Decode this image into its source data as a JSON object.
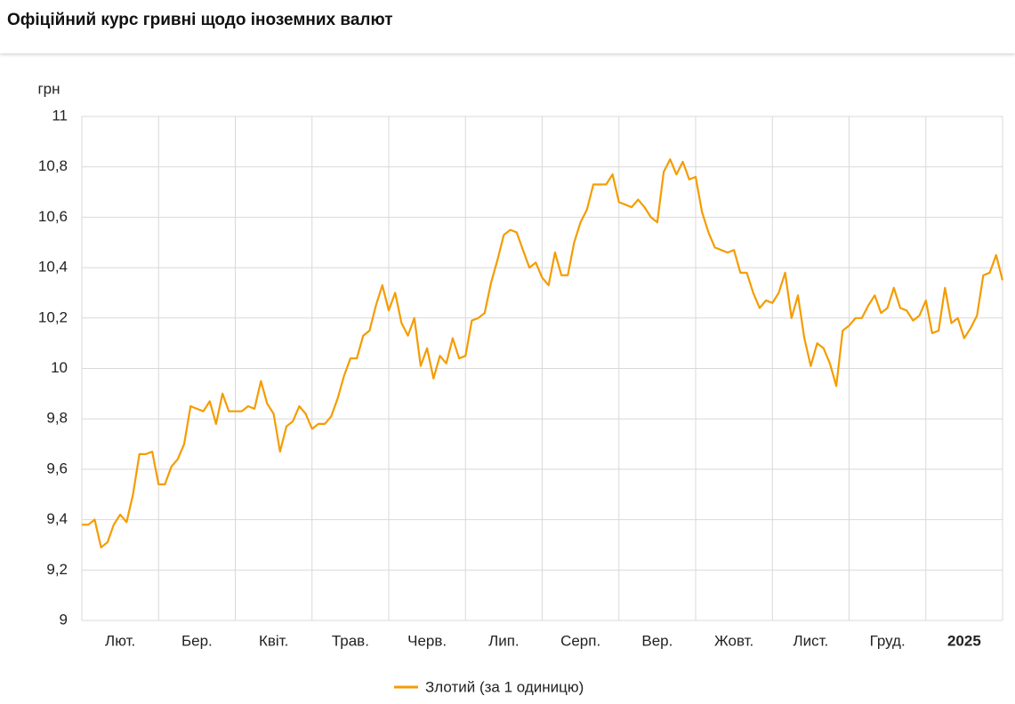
{
  "header": {
    "title": "Офіційний курс гривні щодо іноземних валют"
  },
  "chart_data": {
    "type": "line",
    "y_unit": "грн",
    "categories": [
      null,
      null,
      null,
      null,
      null,
      null,
      "Лют.",
      null,
      null,
      null,
      null,
      null,
      null,
      null,
      null,
      null,
      null,
      null,
      "Бер.",
      null,
      null,
      null,
      null,
      null,
      null,
      null,
      null,
      null,
      null,
      null,
      "Квіт.",
      null,
      null,
      null,
      null,
      null,
      null,
      null,
      null,
      null,
      null,
      null,
      "Трав.",
      null,
      null,
      null,
      null,
      null,
      null,
      null,
      null,
      null,
      null,
      null,
      "Черв.",
      null,
      null,
      null,
      null,
      null,
      null,
      null,
      null,
      null,
      null,
      null,
      "Лип.",
      null,
      null,
      null,
      null,
      null,
      null,
      null,
      null,
      null,
      null,
      null,
      "Серп.",
      null,
      null,
      null,
      null,
      null,
      null,
      null,
      null,
      null,
      null,
      null,
      "Вер.",
      null,
      null,
      null,
      null,
      null,
      null,
      null,
      null,
      null,
      null,
      null,
      "Жовт.",
      null,
      null,
      null,
      null,
      null,
      null,
      null,
      null,
      null,
      null,
      null,
      "Лист.",
      null,
      null,
      null,
      null,
      null,
      null,
      null,
      null,
      null,
      null,
      null,
      "Груд.",
      null,
      null,
      null,
      null,
      null,
      null,
      null,
      null,
      null,
      null,
      null,
      "2025",
      null,
      null,
      null,
      null,
      null,
      null
    ],
    "series": [
      {
        "name": "Злотий (за 1 одиницю)",
        "color": "#f59c00",
        "values": [
          9.38,
          9.38,
          9.4,
          9.29,
          9.31,
          9.38,
          9.42,
          9.39,
          9.5,
          9.66,
          9.66,
          9.67,
          9.54,
          9.54,
          9.61,
          9.64,
          9.7,
          9.85,
          9.84,
          9.83,
          9.87,
          9.78,
          9.9,
          9.83,
          9.83,
          9.83,
          9.85,
          9.84,
          9.95,
          9.86,
          9.82,
          9.67,
          9.77,
          9.79,
          9.85,
          9.82,
          9.76,
          9.78,
          9.78,
          9.81,
          9.88,
          9.97,
          10.04,
          10.04,
          10.13,
          10.15,
          10.25,
          10.33,
          10.23,
          10.3,
          10.18,
          10.13,
          10.2,
          10.01,
          10.08,
          9.96,
          10.05,
          10.02,
          10.12,
          10.04,
          10.05,
          10.19,
          10.2,
          10.22,
          10.34,
          10.43,
          10.53,
          10.55,
          10.54,
          10.47,
          10.4,
          10.42,
          10.36,
          10.33,
          10.46,
          10.37,
          10.37,
          10.5,
          10.58,
          10.63,
          10.73,
          10.73,
          10.73,
          10.77,
          10.66,
          10.65,
          10.64,
          10.67,
          10.64,
          10.6,
          10.58,
          10.78,
          10.83,
          10.77,
          10.82,
          10.75,
          10.76,
          10.62,
          10.54,
          10.48,
          10.47,
          10.46,
          10.47,
          10.38,
          10.38,
          10.3,
          10.24,
          10.27,
          10.26,
          10.3,
          10.38,
          10.2,
          10.29,
          10.12,
          10.01,
          10.1,
          10.08,
          10.02,
          9.93,
          10.15,
          10.17,
          10.2,
          10.2,
          10.25,
          10.29,
          10.22,
          10.24,
          10.32,
          10.24,
          10.23,
          10.19,
          10.21,
          10.27,
          10.14,
          10.15,
          10.32,
          10.18,
          10.2,
          10.12,
          10.16,
          10.21,
          10.37,
          10.38,
          10.45,
          10.35
        ]
      }
    ],
    "ylim": [
      9,
      11
    ],
    "yticks": [
      9,
      {
        "value": 9.2,
        "label": "9,2"
      },
      {
        "value": 9.4,
        "label": "9,4"
      },
      {
        "value": 9.6,
        "label": "9,6"
      },
      {
        "value": 9.8,
        "label": "9,8"
      },
      10,
      {
        "value": 10.2,
        "label": "10,2"
      },
      {
        "value": 10.4,
        "label": "10,4"
      },
      {
        "value": 10.6,
        "label": "10,6"
      },
      {
        "value": 10.8,
        "label": "10,8"
      },
      11
    ],
    "grid": true
  }
}
